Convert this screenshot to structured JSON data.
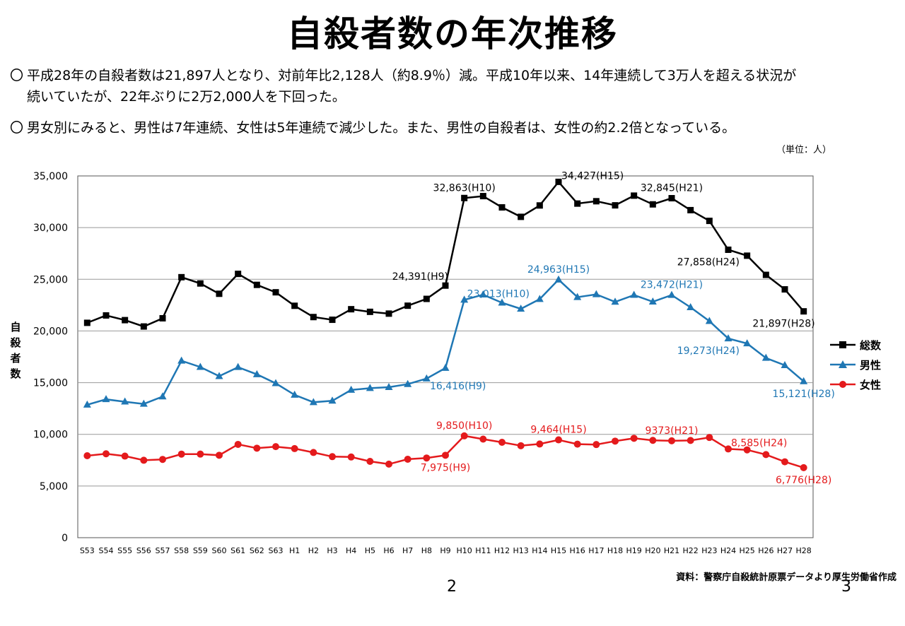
{
  "header": {
    "title": "自殺者数の年次推移"
  },
  "bullets": {
    "b1_mark": "〇",
    "b1_line1": "平成28年の自殺者数は21,897人となり、対前年比2,128人（約8.9％）減。平成10年以来、14年連続して3万人を超える状況が",
    "b1_line2": "続いていたが、22年ぶりに2万2,000人を下回った。",
    "b2_mark": "〇",
    "b2_text": "男女別にみると、男性は7年連続、女性は5年連続で減少した。また、男性の自殺者は、女性の約2.2倍となっている。"
  },
  "unit_label": "（単位：人）",
  "source": "資料：警察庁自殺統計原票データより厚生労働省作成",
  "page_numbers": [
    "2",
    "3"
  ],
  "colors": {
    "total": "#000000",
    "male": "#1f77b4",
    "female": "#e41a1c",
    "grid": "#999999"
  },
  "chart_data": {
    "type": "line",
    "ylabel": "自殺者数",
    "ylim": [
      0,
      35000
    ],
    "yticks": [
      0,
      5000,
      10000,
      15000,
      20000,
      25000,
      30000,
      35000
    ],
    "ytick_labels": [
      "0",
      "5,000",
      "10,000",
      "15,000",
      "20,000",
      "25,000",
      "30,000",
      "35,000"
    ],
    "grid": true,
    "legend": "right",
    "categories": [
      "S53",
      "S54",
      "S55",
      "S56",
      "S57",
      "S58",
      "S59",
      "S60",
      "S61",
      "S62",
      "S63",
      "H1",
      "H2",
      "H3",
      "H4",
      "H5",
      "H6",
      "H7",
      "H8",
      "H9",
      "H10",
      "H11",
      "H12",
      "H13",
      "H14",
      "H15",
      "H16",
      "H17",
      "H18",
      "H19",
      "H20",
      "H21",
      "H22",
      "H23",
      "H24",
      "H25",
      "H26",
      "H27",
      "H28"
    ],
    "series": [
      {
        "key": "total",
        "name": "総数",
        "values": [
          20788,
          21503,
          21048,
          20434,
          21228,
          25202,
          24596,
          23599,
          25524,
          24460,
          23742,
          22436,
          21346,
          21084,
          22104,
          21851,
          21679,
          22445,
          23104,
          24391,
          32863,
          33048,
          31957,
          31042,
          32143,
          34427,
          32325,
          32552,
          32155,
          33093,
          32249,
          32845,
          31690,
          30651,
          27858,
          27283,
          25427,
          24025,
          21897
        ]
      },
      {
        "key": "male",
        "name": "男性",
        "values": [
          12859,
          13386,
          13155,
          12942,
          13654,
          17116,
          16508,
          15624,
          16497,
          15802,
          14934,
          13818,
          13102,
          13242,
          14296,
          14468,
          14560,
          14853,
          15393,
          16416,
          23013,
          23512,
          22727,
          22144,
          23080,
          24963,
          23272,
          23540,
          22813,
          23478,
          22831,
          23472,
          22283,
          20955,
          19273,
          18787,
          17386,
          16681,
          15121
        ]
      },
      {
        "key": "female",
        "name": "女性",
        "values": [
          7929,
          8117,
          7893,
          7492,
          7574,
          8086,
          8088,
          7975,
          9027,
          8658,
          8808,
          8618,
          8244,
          7842,
          7808,
          7383,
          7119,
          7592,
          7711,
          7975,
          9850,
          9536,
          9230,
          8898,
          9063,
          9464,
          9053,
          9012,
          9342,
          9615,
          9418,
          9373,
          9407,
          9696,
          8585,
          8496,
          8041,
          7344,
          6776
        ]
      }
    ],
    "annotations": [
      {
        "series": "total",
        "category": "H9",
        "text": "24,391(H9)",
        "anchor": "left"
      },
      {
        "series": "total",
        "category": "H10",
        "text": "32,863(H10)",
        "anchor": "above"
      },
      {
        "series": "total",
        "category": "H15",
        "text": "34,427(H15)",
        "anchor": "above-right"
      },
      {
        "series": "total",
        "category": "H21",
        "text": "32,845(H21)",
        "anchor": "above"
      },
      {
        "series": "total",
        "category": "H24",
        "text": "27,858(H24)",
        "anchor": "below-left"
      },
      {
        "series": "total",
        "category": "H28",
        "text": "21,897(H28)",
        "anchor": "below-left"
      },
      {
        "series": "male",
        "category": "H9",
        "text": "16,416(H9)",
        "anchor": "below-right"
      },
      {
        "series": "male",
        "category": "H10",
        "text": "23,013(H10)",
        "anchor": "above-right"
      },
      {
        "series": "male",
        "category": "H15",
        "text": "24,963(H15)",
        "anchor": "above"
      },
      {
        "series": "male",
        "category": "H21",
        "text": "23,472(H21)",
        "anchor": "above"
      },
      {
        "series": "male",
        "category": "H24",
        "text": "19,273(H24)",
        "anchor": "below-left"
      },
      {
        "series": "male",
        "category": "H28",
        "text": "15,121(H28)",
        "anchor": "below"
      },
      {
        "series": "female",
        "category": "H9",
        "text": "7,975(H9)",
        "anchor": "below"
      },
      {
        "series": "female",
        "category": "H10",
        "text": "9,850(H10)",
        "anchor": "above"
      },
      {
        "series": "female",
        "category": "H15",
        "text": "9,464(H15)",
        "anchor": "above"
      },
      {
        "series": "female",
        "category": "H21",
        "text": "9373(H21)",
        "anchor": "above"
      },
      {
        "series": "female",
        "category": "H24",
        "text": "8,585(H24)",
        "anchor": "above-right"
      },
      {
        "series": "female",
        "category": "H28",
        "text": "6,776(H28)",
        "anchor": "below"
      }
    ]
  }
}
